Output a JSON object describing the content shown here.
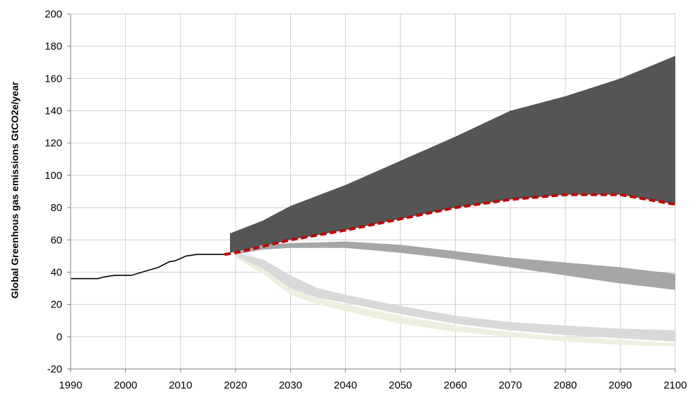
{
  "chart_data": {
    "type": "area",
    "ylabel": "Global Greenhous gas emissions GtCO2e/year",
    "xlim": [
      1990,
      2100
    ],
    "ylim": [
      -20,
      200
    ],
    "x_ticks": [
      1990,
      2000,
      2010,
      2020,
      2030,
      2040,
      2050,
      2060,
      2070,
      2080,
      2090,
      2100
    ],
    "y_ticks": [
      -20,
      0,
      20,
      40,
      60,
      80,
      100,
      120,
      140,
      160,
      180,
      200
    ],
    "grid": true,
    "legend": "none",
    "historical": {
      "color": "#000000",
      "x": [
        1990,
        1995,
        1996,
        1998,
        2001,
        2004,
        2006,
        2008,
        2009,
        2011,
        2013,
        2018
      ],
      "y": [
        36,
        36,
        37,
        38,
        38,
        41,
        43,
        46.5,
        47,
        50,
        51,
        51
      ]
    },
    "bands": [
      {
        "color": "#555555",
        "x": [
          2019,
          2025,
          2030,
          2040,
          2050,
          2060,
          2070,
          2080,
          2090,
          2100
        ],
        "upper": [
          64,
          72,
          81,
          94,
          109,
          124,
          140,
          149,
          160,
          174
        ],
        "lower": [
          52,
          56,
          60,
          66,
          73,
          80,
          85,
          88,
          88,
          82
        ]
      },
      {
        "color": "#a6a6a6",
        "x": [
          2020,
          2025,
          2030,
          2040,
          2050,
          2060,
          2070,
          2080,
          2090,
          2100
        ],
        "upper": [
          52,
          57,
          58,
          59,
          57,
          53,
          49,
          46,
          43,
          39
        ],
        "lower": [
          51,
          54,
          55,
          55,
          52,
          48,
          43,
          38,
          33,
          29
        ]
      },
      {
        "color": "#d9d9d9",
        "x": [
          2020,
          2025,
          2030,
          2035,
          2040,
          2050,
          2060,
          2070,
          2080,
          2090,
          2100
        ],
        "upper": [
          52,
          48,
          38,
          30,
          26,
          19,
          13,
          9,
          7,
          5,
          4
        ],
        "lower": [
          50,
          42,
          30,
          24,
          21,
          14,
          8,
          4,
          1,
          -1,
          -3
        ]
      },
      {
        "color": "#ebf1de",
        "x": [
          2020,
          2025,
          2030,
          2035,
          2040,
          2050,
          2060,
          2070,
          2080,
          2090,
          2100
        ],
        "upper": [
          50,
          42,
          30,
          24,
          20,
          13,
          7,
          3,
          0,
          -2,
          -4
        ],
        "lower": [
          49,
          39,
          26,
          20,
          16,
          8,
          3,
          0,
          -3,
          -5,
          -6
        ]
      }
    ],
    "reference_line": {
      "style": "dashed",
      "color": "#c00000",
      "x": [
        2018,
        2020,
        2025,
        2030,
        2040,
        2050,
        2060,
        2070,
        2080,
        2090,
        2100
      ],
      "y": [
        51,
        52,
        56,
        60,
        66,
        73,
        80,
        85,
        88,
        88,
        82
      ]
    }
  }
}
